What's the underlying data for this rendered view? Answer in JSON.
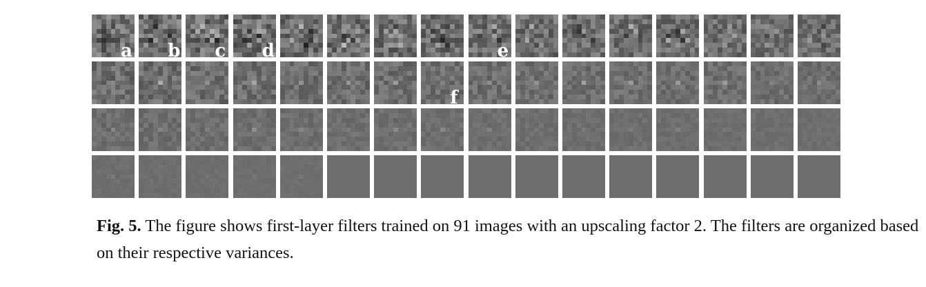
{
  "figure": {
    "rows": 4,
    "columns": 16,
    "filter_size": 9,
    "flat_gray": "#6e6e6e",
    "labels": [
      {
        "text": "a",
        "row": 0,
        "col": 0
      },
      {
        "text": "b",
        "row": 0,
        "col": 1
      },
      {
        "text": "c",
        "row": 0,
        "col": 2
      },
      {
        "text": "d",
        "row": 0,
        "col": 3
      },
      {
        "text": "e",
        "row": 0,
        "col": 8
      },
      {
        "text": "f",
        "row": 1,
        "col": 7
      }
    ]
  },
  "caption": {
    "label": "Fig. 5.",
    "text": " The figure shows first-layer filters trained on 91 images with an upscaling factor 2. The filters are organized based on their respective variances."
  }
}
